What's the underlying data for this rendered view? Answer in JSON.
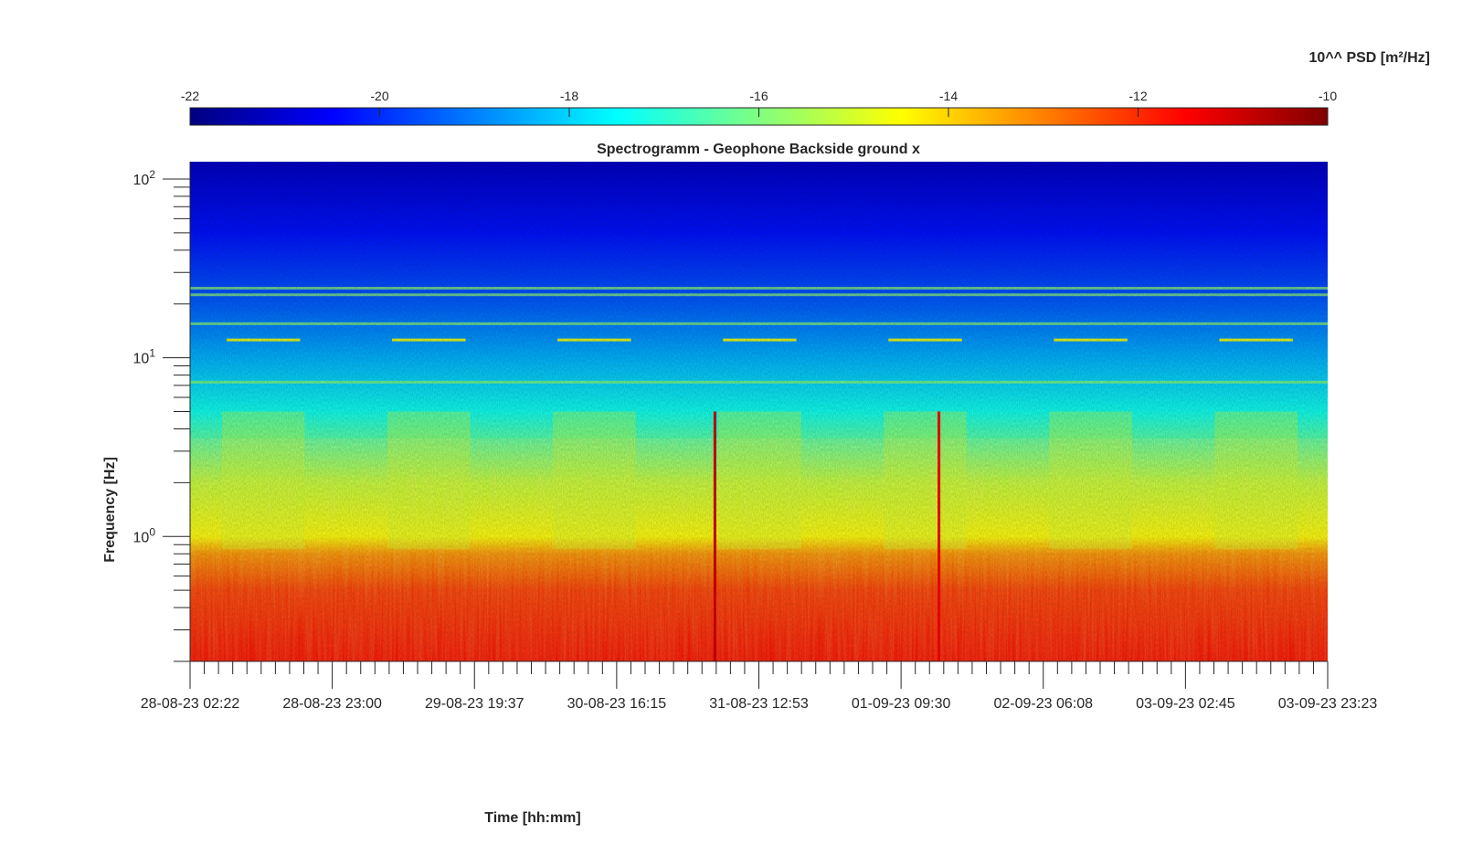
{
  "chart_data": {
    "type": "heatmap",
    "title": "Spectrogramm - Geophone Backside ground x",
    "xlabel": "Time [hh:mm]",
    "ylabel": "Frequency [Hz]",
    "yscale": "log",
    "colorbar": {
      "label": "10^^ PSD [m²/Hz]",
      "ticks": [
        "-22",
        "-20",
        "-18",
        "-16",
        "-14",
        "-12",
        "-10"
      ],
      "range": [
        -22,
        -10
      ],
      "colormap": "jet"
    },
    "x_ticks": [
      "28-08-23 02:22",
      "28-08-23 23:00",
      "29-08-23 19:37",
      "30-08-23 16:15",
      "31-08-23 12:53",
      "01-09-23 09:30",
      "02-09-23 06:08",
      "03-09-23 02:45",
      "03-09-23 23:23"
    ],
    "y_ticks": [
      {
        "base": "10",
        "exp": "0",
        "value": 1
      },
      {
        "base": "10",
        "exp": "1",
        "value": 10
      },
      {
        "base": "10",
        "exp": "2",
        "value": 100
      }
    ],
    "ylim": [
      0.2,
      125
    ],
    "xlim": [
      "28-08-23 02:22",
      "03-09-23 23:23"
    ],
    "day_periods": 7,
    "psd_profile_by_frequency": [
      {
        "freq": 0.2,
        "log_psd": -11.6
      },
      {
        "freq": 0.5,
        "log_psd": -12.1
      },
      {
        "freq": 0.8,
        "log_psd": -13.2
      },
      {
        "freq": 1.0,
        "log_psd": -14.5
      },
      {
        "freq": 2.0,
        "log_psd": -15.2
      },
      {
        "freq": 5.0,
        "log_psd": -17.3
      },
      {
        "freq": 10.0,
        "log_psd": -18.4
      },
      {
        "freq": 20.0,
        "log_psd": -19.4
      },
      {
        "freq": 50.0,
        "log_psd": -20.3
      },
      {
        "freq": 125.0,
        "log_psd": -21.2
      }
    ],
    "persistent_lines_hz": [
      7.3,
      15.5,
      22.5,
      24.5
    ],
    "events": [
      {
        "time": "31-08-23 06:30",
        "log_psd": -11.0
      },
      {
        "time": "01-09-23 15:00",
        "log_psd": -11.5
      }
    ]
  }
}
